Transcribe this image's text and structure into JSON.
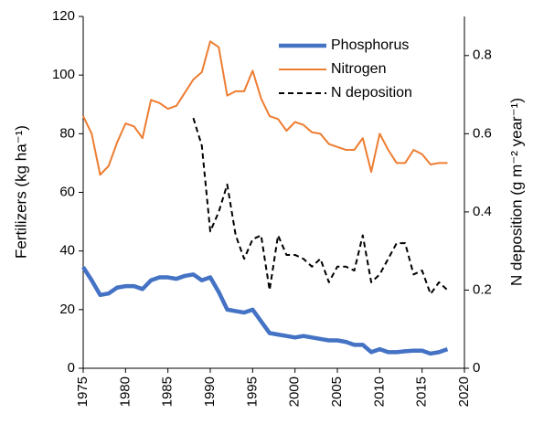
{
  "chart_data": {
    "type": "line",
    "x": [
      1975,
      1976,
      1977,
      1978,
      1979,
      1980,
      1981,
      1982,
      1983,
      1984,
      1985,
      1986,
      1987,
      1988,
      1989,
      1990,
      1991,
      1992,
      1993,
      1994,
      1995,
      1996,
      1997,
      1998,
      1999,
      2000,
      2001,
      2002,
      2003,
      2004,
      2005,
      2006,
      2007,
      2008,
      2009,
      2010,
      2011,
      2012,
      2013,
      2014,
      2015,
      2016,
      2017,
      2018
    ],
    "series": [
      {
        "name": "Phosphorus",
        "color": "#4472c4",
        "values": [
          34.5,
          30,
          25,
          25.5,
          27.5,
          28,
          28,
          27,
          30,
          31,
          31,
          30.5,
          31.5,
          32,
          30,
          31,
          26,
          20,
          19.5,
          19,
          20,
          16,
          12,
          11.5,
          11,
          10.5,
          11,
          10.5,
          10,
          9.5,
          9.5,
          9,
          8,
          8,
          5.5,
          6.5,
          5.5,
          5.5,
          5.8,
          6,
          6,
          5,
          5.5,
          6.5
        ]
      },
      {
        "name": "Nitrogen",
        "color": "#ed7d31",
        "values": [
          86,
          80,
          66,
          69,
          77,
          83.5,
          82.5,
          78.5,
          91.5,
          90.5,
          88.5,
          89.5,
          94,
          98.5,
          101,
          111.5,
          109.5,
          93,
          94.5,
          94.5,
          101.5,
          92,
          86,
          85,
          81,
          84,
          83,
          80.5,
          80,
          76.5,
          75.5,
          74.5,
          74.5,
          78.5,
          67,
          80,
          74.5,
          70,
          70,
          74.5,
          73,
          69.5,
          70,
          70
        ]
      },
      {
        "name": "N deposition",
        "color": "#000000",
        "axis": "y2",
        "values": [
          null,
          null,
          null,
          null,
          null,
          null,
          null,
          null,
          null,
          null,
          null,
          null,
          null,
          0.64,
          0.57,
          0.35,
          0.4,
          0.47,
          0.34,
          0.28,
          0.33,
          0.34,
          0.2,
          0.34,
          0.29,
          0.29,
          0.28,
          0.26,
          0.28,
          0.22,
          0.26,
          0.26,
          0.25,
          0.34,
          0.22,
          0.24,
          0.28,
          0.32,
          0.32,
          0.24,
          0.25,
          0.19,
          0.22,
          0.2
        ]
      }
    ],
    "xlim": [
      1975,
      2020
    ],
    "xticks": [
      1975,
      1980,
      1985,
      1990,
      1995,
      2000,
      2005,
      2010,
      2015,
      2020
    ],
    "ylim": [
      0,
      120
    ],
    "yticks": [
      0,
      20,
      40,
      60,
      80,
      100,
      120
    ],
    "y2lim": [
      0,
      0.9
    ],
    "y2ticks": [
      0,
      0.2,
      0.4,
      0.6,
      0.8
    ],
    "ylabel": "Fertilizers (kg ha⁻¹)",
    "y2label": "N deposition (g m⁻² year⁻¹)",
    "legend": "top-right"
  }
}
